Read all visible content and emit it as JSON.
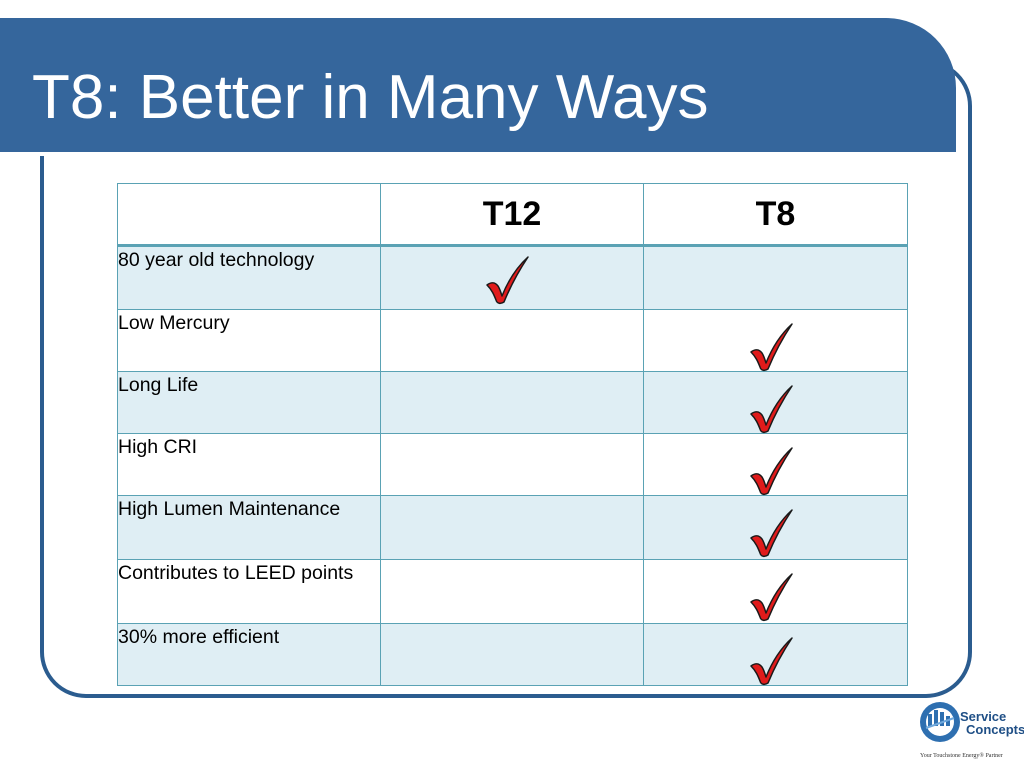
{
  "slide": {
    "title": "T8:  Better in Many Ways"
  },
  "table": {
    "headers": [
      "",
      "T12",
      "T8"
    ],
    "rows": [
      {
        "feature": "80 year old technology",
        "t12": true,
        "t8": false
      },
      {
        "feature": "Low Mercury",
        "t12": false,
        "t8": true
      },
      {
        "feature": "Long Life",
        "t12": false,
        "t8": true
      },
      {
        "feature": "High CRI",
        "t12": false,
        "t8": true
      },
      {
        "feature": "High Lumen Maintenance",
        "t12": false,
        "t8": true
      },
      {
        "feature": "Contributes to LEED points",
        "t12": false,
        "t8": true
      },
      {
        "feature": "30% more efficient",
        "t12": false,
        "t8": true
      }
    ]
  },
  "logo": {
    "name_line1": "Service",
    "name_line2": "Concepts",
    "tagline": "Your Touchstone Energy® Partner"
  },
  "colors": {
    "title_bar": "#35669c",
    "frame": "#2b5c8f",
    "table_border": "#5aa2b4",
    "stripe": "#dfeef4",
    "check": "#e01b1b"
  },
  "icons": {
    "check": "check-mark-icon"
  }
}
